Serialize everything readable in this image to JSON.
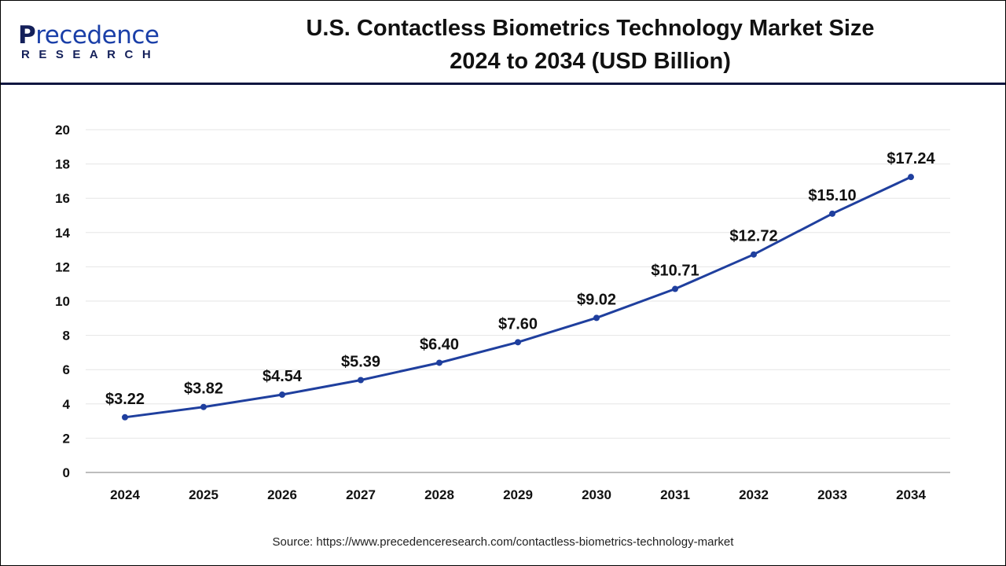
{
  "logo": {
    "line1": "Precedence",
    "line2": "RESEARCH"
  },
  "title_line1": "U.S. Contactless Biometrics Technology Market Size",
  "title_line2": "2024 to 2034 (USD Billion)",
  "source": "Source: https://www.precedenceresearch.com/contactless-biometrics-technology-market",
  "chart_data": {
    "type": "line",
    "title": "U.S. Contactless Biometrics Technology Market Size 2024 to 2034 (USD Billion)",
    "categories": [
      "2024",
      "2025",
      "2026",
      "2027",
      "2028",
      "2029",
      "2030",
      "2031",
      "2032",
      "2033",
      "2034"
    ],
    "values": [
      3.22,
      3.82,
      4.54,
      5.39,
      6.4,
      7.6,
      9.02,
      10.71,
      12.72,
      15.1,
      17.24
    ],
    "data_labels": [
      "$3.22",
      "$3.82",
      "$4.54",
      "$5.39",
      "$6.40",
      "$7.60",
      "$9.02",
      "$10.71",
      "$12.72",
      "$15.10",
      "$17.24"
    ],
    "yticks": [
      0,
      2,
      4,
      6,
      8,
      10,
      12,
      14,
      16,
      18,
      20
    ],
    "ylim": [
      0,
      20
    ],
    "xlabel": "",
    "ylabel": "",
    "grid": true,
    "line_color": "#1f3f9e"
  }
}
